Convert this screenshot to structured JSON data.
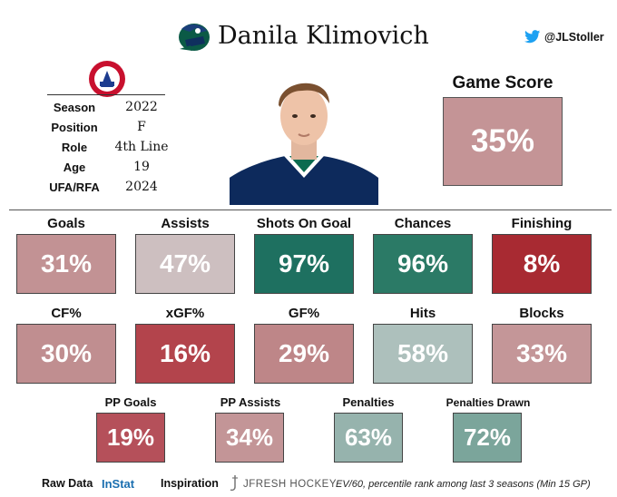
{
  "header": {
    "player_name": "Danila Klimovich",
    "twitter_handle": "@JLStoller"
  },
  "info": [
    {
      "key": "Season",
      "value": "2022"
    },
    {
      "key": "Position",
      "value": "F"
    },
    {
      "key": "Role",
      "value": "4th Line"
    },
    {
      "key": "Age",
      "value": "19"
    },
    {
      "key": "UFA/RFA",
      "value": "2024"
    }
  ],
  "game_score": {
    "label": "Game Score",
    "value": "35%",
    "color": "#c49496"
  },
  "stats_row1": [
    {
      "label": "Goals",
      "value": "31%",
      "color": "#c29294"
    },
    {
      "label": "Assists",
      "value": "47%",
      "color": "#cdbfc0"
    },
    {
      "label": "Shots On Goal",
      "value": "97%",
      "color": "#1e7060"
    },
    {
      "label": "Chances",
      "value": "96%",
      "color": "#2b7a66"
    },
    {
      "label": "Finishing",
      "value": "8%",
      "color": "#a82a32"
    }
  ],
  "stats_row2": [
    {
      "label": "CF%",
      "value": "30%",
      "color": "#c08e90"
    },
    {
      "label": "xGF%",
      "value": "16%",
      "color": "#b3444c"
    },
    {
      "label": "GF%",
      "value": "29%",
      "color": "#be8688"
    },
    {
      "label": "Hits",
      "value": "58%",
      "color": "#adc0bc"
    },
    {
      "label": "Blocks",
      "value": "33%",
      "color": "#c49698"
    }
  ],
  "stats_row3": [
    {
      "label": "PP Goals",
      "value": "19%",
      "color": "#b5505a"
    },
    {
      "label": "PP Assists",
      "value": "34%",
      "color": "#c39597"
    },
    {
      "label": "Penalties",
      "value": "63%",
      "color": "#96b3ad"
    },
    {
      "label": "Penalties Drawn",
      "value": "72%",
      "color": "#7ba59b"
    }
  ],
  "footer": {
    "raw_data_label": "Raw Data",
    "raw_data_source": "InStat",
    "inspiration_label": "Inspiration",
    "inspiration_source": "JFRESH HOCKEY",
    "note": "EV/60, percentile rank among last 3 seasons (Min 15 GP)"
  }
}
